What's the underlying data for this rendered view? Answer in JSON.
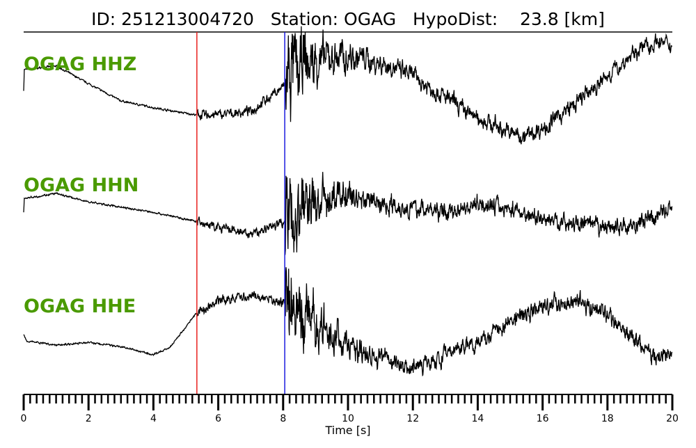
{
  "chart_data": {
    "type": "line",
    "title": "ID: 251213004720   Station: OGAG   HypoDist:    23.8 [km]",
    "xlabel": "Time [s]",
    "xlim": [
      0,
      20
    ],
    "xticks": [
      "0",
      "2",
      "4",
      "6",
      "8",
      "10",
      "12",
      "14",
      "16",
      "18",
      "20"
    ],
    "minor_tick_step": 0.2,
    "grid": false,
    "colors": {
      "trace": "#000000",
      "label": "#4a9a00",
      "p_pick": "#e8201e",
      "s_pick": "#1a1adf"
    },
    "picks": {
      "p_time": 5.34,
      "s_time": 8.05
    },
    "traces": [
      {
        "label": "OGAG HHZ",
        "t": [
          0,
          0.02,
          1,
          2,
          3,
          4,
          5.3,
          6,
          7,
          8,
          8.5,
          9,
          10,
          11,
          12,
          13,
          14,
          15,
          15.5,
          16,
          17,
          18,
          19,
          19.5,
          20
        ],
        "amp": [
          0,
          0.4,
          0.47,
          0.13,
          -0.2,
          -0.33,
          -0.47,
          -0.47,
          -0.4,
          0.07,
          0.4,
          0.55,
          0.67,
          0.53,
          0.27,
          -0.13,
          -0.53,
          -0.8,
          -0.87,
          -0.73,
          -0.27,
          0.27,
          0.8,
          0.93,
          0.83
        ]
      },
      {
        "label": "OGAG HHN",
        "t": [
          0,
          0.02,
          1,
          2,
          3,
          4,
          5.3,
          6,
          7,
          8,
          9,
          10,
          11,
          12,
          13,
          14,
          15,
          16,
          17,
          18,
          19,
          20
        ],
        "amp": [
          -0.07,
          0.2,
          0.29,
          0.13,
          0.03,
          -0.07,
          -0.24,
          -0.37,
          -0.5,
          -0.24,
          0.13,
          0.27,
          0.11,
          0,
          -0.07,
          0.11,
          0,
          -0.2,
          -0.29,
          -0.37,
          -0.29,
          0.04
        ]
      },
      {
        "label": "OGAG HHE",
        "t": [
          0,
          0.1,
          1,
          2,
          3,
          4,
          4.5,
          5.3,
          6,
          7,
          8,
          9,
          10,
          11,
          12,
          13,
          14,
          15,
          16,
          17,
          18,
          19,
          19.5,
          20
        ],
        "amp": [
          -0.07,
          -0.2,
          -0.28,
          -0.23,
          -0.31,
          -0.47,
          -0.33,
          0.31,
          0.57,
          0.67,
          0.53,
          0.07,
          -0.27,
          -0.53,
          -0.71,
          -0.47,
          -0.2,
          0.2,
          0.47,
          0.6,
          0.27,
          -0.27,
          -0.53,
          -0.47
        ]
      }
    ]
  }
}
